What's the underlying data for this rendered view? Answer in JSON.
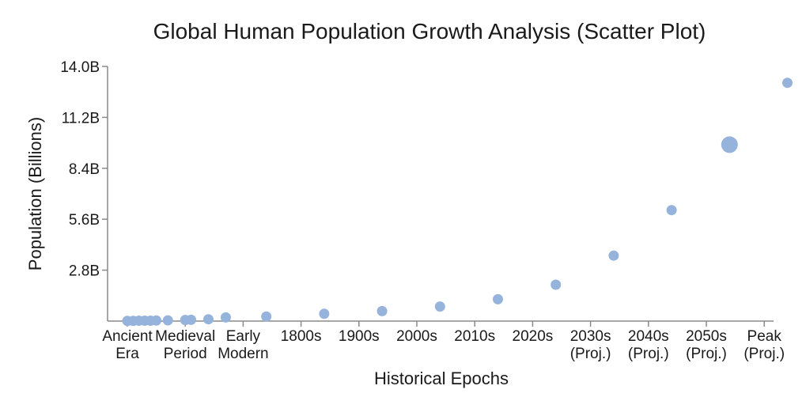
{
  "chart_data": {
    "type": "scatter",
    "title": "Global Human Population Growth Analysis (Scatter Plot)",
    "xlabel": "Historical Epochs",
    "ylabel": "Population (Billions)",
    "ylim": [
      0,
      14
    ],
    "yticks": [
      {
        "value": 2.8,
        "label": "2.8B"
      },
      {
        "value": 5.6,
        "label": "5.6B"
      },
      {
        "value": 8.4,
        "label": "8.4B"
      },
      {
        "value": 11.2,
        "label": "11.2B"
      },
      {
        "value": 14.0,
        "label": "14.0B"
      }
    ],
    "categories": [
      [
        "Ancient",
        "Era"
      ],
      [
        "Medieval",
        "Period"
      ],
      [
        "Early",
        "Modern"
      ],
      [
        "1800s"
      ],
      [
        "1900s"
      ],
      [
        "2000s"
      ],
      [
        "2010s"
      ],
      [
        "2020s"
      ],
      [
        "2030s",
        "(Proj.)"
      ],
      [
        "2040s",
        "(Proj.)"
      ],
      [
        "2050s",
        "(Proj.)"
      ],
      [
        "Peak",
        "(Proj.)"
      ]
    ],
    "color": "#96b3dc",
    "points": [
      {
        "x": 0.0,
        "y": 0.01,
        "emphasis": false
      },
      {
        "x": 0.1,
        "y": 0.01,
        "emphasis": false
      },
      {
        "x": 0.2,
        "y": 0.02,
        "emphasis": false
      },
      {
        "x": 0.3,
        "y": 0.02,
        "emphasis": false
      },
      {
        "x": 0.4,
        "y": 0.02,
        "emphasis": false
      },
      {
        "x": 0.5,
        "y": 0.03,
        "emphasis": false
      },
      {
        "x": 0.7,
        "y": 0.04,
        "emphasis": false
      },
      {
        "x": 1.0,
        "y": 0.06,
        "emphasis": false
      },
      {
        "x": 1.1,
        "y": 0.07,
        "emphasis": false
      },
      {
        "x": 1.4,
        "y": 0.1,
        "emphasis": false
      },
      {
        "x": 1.7,
        "y": 0.2,
        "emphasis": false
      },
      {
        "x": 2.4,
        "y": 0.25,
        "emphasis": false
      },
      {
        "x": 3.4,
        "y": 0.4,
        "emphasis": false
      },
      {
        "x": 4.4,
        "y": 0.55,
        "emphasis": false
      },
      {
        "x": 5.4,
        "y": 0.8,
        "emphasis": false
      },
      {
        "x": 6.4,
        "y": 1.2,
        "emphasis": false
      },
      {
        "x": 7.4,
        "y": 2.0,
        "emphasis": false
      },
      {
        "x": 8.4,
        "y": 3.6,
        "emphasis": false
      },
      {
        "x": 9.4,
        "y": 6.1,
        "emphasis": false
      },
      {
        "x": 10.4,
        "y": 9.7,
        "emphasis": true
      },
      {
        "x": 11.4,
        "y": 13.1,
        "emphasis": false
      }
    ]
  }
}
